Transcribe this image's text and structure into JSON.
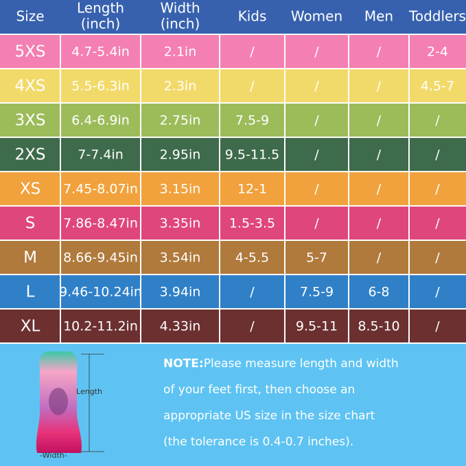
{
  "table": {
    "header": [
      [
        "Size"
      ],
      [
        "Length",
        "(inch)"
      ],
      [
        "Width",
        "(inch)"
      ],
      [
        "Kids"
      ],
      [
        "Women"
      ],
      [
        "Men"
      ],
      [
        "Toddlers"
      ]
    ],
    "rows": [
      [
        "5XS",
        "4.7-5.4in",
        "2.1in",
        "/",
        "/",
        "/",
        "2-4"
      ],
      [
        "4XS",
        "5.5-6.3in",
        "2.3in",
        "/",
        "/",
        "/",
        "4.5-7"
      ],
      [
        "3XS",
        "6.4-6.9in",
        "2.75in",
        "7.5-9",
        "/",
        "/",
        "/"
      ],
      [
        "2XS",
        "7-7.4in",
        "2.95in",
        "9.5-11.5",
        "/",
        "/",
        "/"
      ],
      [
        "XS",
        "7.45-8.07in",
        "3.15in",
        "12-1",
        "/",
        "/",
        "/"
      ],
      [
        "S",
        "7.86-8.47in",
        "3.35in",
        "1.5-3.5",
        "/",
        "/",
        "/"
      ],
      [
        "M",
        "8.66-9.45in",
        "3.54in",
        "4-5.5",
        "5-7",
        "/",
        "/"
      ],
      [
        "L",
        "9.46-10.24in",
        "3.94in",
        "/",
        "7.5-9",
        "6-8",
        "/"
      ],
      [
        "XL",
        "10.2-11.2in",
        "4.33in",
        "/",
        "9.5-11",
        "8.5-10",
        "/"
      ]
    ]
  },
  "diagram": {
    "length_label": "Length",
    "width_label": "-Width-"
  },
  "note": {
    "label": "NOTE:",
    "lines": [
      "Please measure length and width",
      "of your feet first, then choose an",
      "appropriate US size in the size chart",
      "(the tolerance is 0.4-0.7 inches)."
    ]
  }
}
